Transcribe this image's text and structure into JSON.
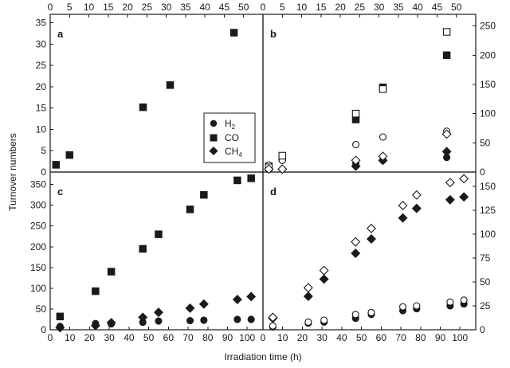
{
  "figure": {
    "xlabel": "Irradiation time (h)",
    "ylabel": "Turnover numbers",
    "legend": {
      "placement": "bottom-right of panel a",
      "entries": [
        {
          "base": "H",
          "sub": "2",
          "marker": "circle",
          "fill": "filled"
        },
        {
          "base": "CO",
          "sub": "",
          "marker": "square",
          "fill": "filled"
        },
        {
          "base": "CH",
          "sub": "4",
          "marker": "diamond",
          "fill": "filled"
        }
      ]
    },
    "colors": {
      "marker": "#1a1a1a",
      "background": "#ffffff"
    }
  },
  "chart_data": [
    {
      "panel": "a",
      "type": "scatter",
      "xlim": [
        0,
        55
      ],
      "ylim": [
        0,
        37
      ],
      "xticks": [
        0,
        5,
        10,
        15,
        20,
        25,
        30,
        35,
        40,
        45,
        50
      ],
      "yticks": [
        0,
        5,
        10,
        15,
        20,
        25,
        30,
        35
      ],
      "xaxis_side": "top",
      "yaxis_side": "left",
      "series": [
        {
          "name": "CO",
          "marker": "square",
          "fill": "filled",
          "x": [
            1.5,
            5.0,
            24.0,
            31.0,
            47.5
          ],
          "y": [
            1.7,
            4.0,
            15.2,
            20.4,
            32.7
          ]
        }
      ]
    },
    {
      "panel": "b",
      "type": "scatter",
      "xlim": [
        0,
        55
      ],
      "ylim": [
        0,
        270
      ],
      "xticks": [
        0,
        5,
        10,
        15,
        20,
        25,
        30,
        35,
        40,
        45,
        50
      ],
      "yticks": [
        0,
        50,
        100,
        150,
        200,
        250
      ],
      "xaxis_side": "top",
      "yaxis_side": "right",
      "series": [
        {
          "name": "H2",
          "marker": "circle",
          "fill": "filled",
          "x": [
            1.5,
            5.0,
            24.0,
            31.0,
            47.5
          ],
          "y": [
            5,
            20,
            15,
            20,
            25
          ]
        },
        {
          "name": "CO",
          "marker": "square",
          "fill": "filled",
          "x": [
            1.5,
            5.0,
            24.0,
            31.0,
            47.5
          ],
          "y": [
            10,
            25,
            90,
            145,
            200
          ]
        },
        {
          "name": "CH4",
          "marker": "diamond",
          "fill": "filled",
          "x": [
            1.5,
            5.0,
            24.0,
            31.0,
            47.5
          ],
          "y": [
            5,
            5,
            10,
            20,
            35
          ]
        },
        {
          "name": "H2",
          "marker": "circle",
          "fill": "open",
          "x": [
            1.5,
            5.0,
            24.0,
            31.0,
            47.5
          ],
          "y": [
            12,
            20,
            47,
            60,
            70
          ]
        },
        {
          "name": "CO",
          "marker": "square",
          "fill": "open",
          "x": [
            1.5,
            5.0,
            24.0,
            31.0,
            47.5
          ],
          "y": [
            8,
            28,
            100,
            142,
            240
          ]
        },
        {
          "name": "CH4",
          "marker": "diamond",
          "fill": "open",
          "x": [
            1.5,
            5.0,
            24.0,
            31.0,
            47.5
          ],
          "y": [
            5,
            5,
            20,
            27,
            65
          ]
        }
      ]
    },
    {
      "panel": "c",
      "type": "scatter",
      "xlim": [
        0,
        108
      ],
      "ylim": [
        0,
        380
      ],
      "xticks": [
        0,
        10,
        20,
        30,
        40,
        50,
        60,
        70,
        80,
        90,
        100
      ],
      "yticks": [
        0,
        50,
        100,
        150,
        200,
        250,
        300,
        350
      ],
      "xaxis_side": "bottom",
      "yaxis_side": "left",
      "series": [
        {
          "name": "H2",
          "marker": "circle",
          "fill": "filled",
          "x": [
            5,
            23,
            31,
            47,
            55,
            71,
            78,
            95,
            102
          ],
          "y": [
            8,
            15,
            14,
            18,
            21,
            22,
            23,
            25,
            25
          ]
        },
        {
          "name": "CO",
          "marker": "square",
          "fill": "filled",
          "x": [
            5,
            23,
            31,
            47,
            55,
            71,
            78,
            95,
            102
          ],
          "y": [
            32,
            93,
            140,
            195,
            230,
            290,
            325,
            360,
            365
          ]
        },
        {
          "name": "CH4",
          "marker": "diamond",
          "fill": "filled",
          "x": [
            5,
            23,
            31,
            47,
            55,
            71,
            78,
            95,
            102
          ],
          "y": [
            5,
            10,
            17,
            30,
            42,
            52,
            62,
            73,
            80
          ]
        }
      ]
    },
    {
      "panel": "d",
      "type": "scatter",
      "xlim": [
        0,
        108
      ],
      "ylim": [
        0,
        165
      ],
      "xticks": [
        0,
        10,
        20,
        30,
        40,
        50,
        60,
        70,
        80,
        90,
        100
      ],
      "yticks": [
        0,
        25,
        50,
        75,
        100,
        125,
        150
      ],
      "xaxis_side": "bottom",
      "yaxis_side": "right",
      "series": [
        {
          "name": "H2",
          "marker": "circle",
          "fill": "filled",
          "x": [
            5,
            23,
            31,
            47,
            55,
            71,
            78,
            95,
            102
          ],
          "y": [
            3,
            7,
            8,
            12,
            16,
            20,
            22,
            25,
            27
          ]
        },
        {
          "name": "CH4",
          "marker": "diamond",
          "fill": "filled",
          "x": [
            5,
            23,
            31,
            47,
            55,
            71,
            78,
            95,
            102
          ],
          "y": [
            12,
            35,
            53,
            80,
            95,
            117,
            127,
            136,
            139
          ]
        },
        {
          "name": "H2",
          "marker": "circle",
          "fill": "open",
          "x": [
            5,
            23,
            31,
            47,
            55,
            71,
            78,
            95,
            102
          ],
          "y": [
            4,
            8,
            10,
            16,
            18,
            24,
            25,
            29,
            31
          ]
        },
        {
          "name": "CH4",
          "marker": "diamond",
          "fill": "open",
          "x": [
            5,
            23,
            31,
            47,
            55,
            71,
            78,
            95,
            102
          ],
          "y": [
            13,
            44,
            62,
            92,
            106,
            130,
            141,
            154,
            158
          ]
        }
      ]
    }
  ]
}
